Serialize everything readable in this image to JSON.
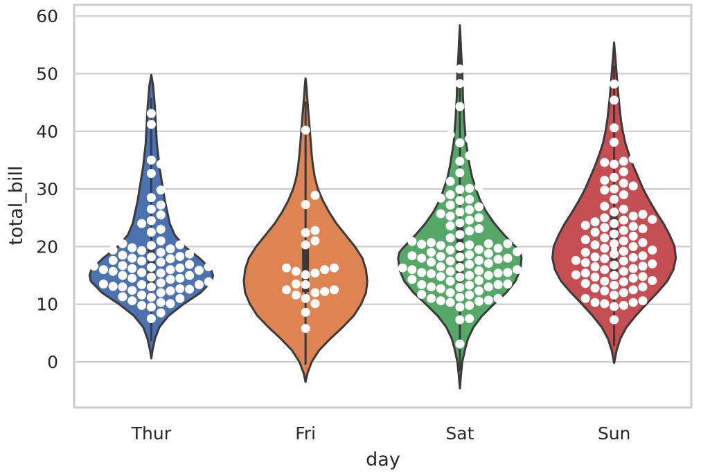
{
  "chart_data": {
    "type": "violin",
    "xlabel": "day",
    "ylabel": "total_bill",
    "ylim": [
      -8,
      62
    ],
    "yticks": [
      0,
      10,
      20,
      30,
      40,
      50,
      60
    ],
    "ytick_labels": [
      "0",
      "10",
      "20",
      "30",
      "40",
      "50",
      "60"
    ],
    "grid": true,
    "categories": [
      "Thur",
      "Fri",
      "Sat",
      "Sun"
    ],
    "colors": [
      "#4c72b0",
      "#dd8452",
      "#55a868",
      "#c44e52"
    ],
    "point_color": "#ffffff",
    "outline_color": "#3a3a3a",
    "violins": [
      {
        "name": "Thur",
        "range": [
          0.6,
          49.8
        ],
        "median": 16.2,
        "q1": 12.4,
        "q3": 20.2,
        "profile": [
          [
            0.6,
            0
          ],
          [
            2,
            0.02
          ],
          [
            4,
            0.06
          ],
          [
            6,
            0.13
          ],
          [
            8,
            0.28
          ],
          [
            10,
            0.52
          ],
          [
            12,
            0.8
          ],
          [
            14,
            0.98
          ],
          [
            15,
            1.0
          ],
          [
            16,
            0.97
          ],
          [
            18,
            0.78
          ],
          [
            20,
            0.54
          ],
          [
            22,
            0.38
          ],
          [
            24,
            0.3
          ],
          [
            26,
            0.26
          ],
          [
            28,
            0.22
          ],
          [
            30,
            0.19
          ],
          [
            32,
            0.16
          ],
          [
            34,
            0.13
          ],
          [
            36,
            0.11
          ],
          [
            38,
            0.09
          ],
          [
            40,
            0.08
          ],
          [
            42,
            0.07
          ],
          [
            44,
            0.06
          ],
          [
            46,
            0.045
          ],
          [
            48,
            0.03
          ],
          [
            49.8,
            0
          ]
        ],
        "points": [
          7.5,
          8.5,
          9.5,
          9.8,
          10.1,
          10.3,
          10.6,
          11.0,
          11.2,
          11.3,
          11.6,
          12.0,
          12.3,
          12.4,
          12.6,
          12.7,
          13.0,
          13.0,
          13.1,
          13.4,
          13.4,
          13.5,
          13.7,
          13.9,
          14.3,
          14.5,
          14.5,
          14.7,
          15.0,
          15.0,
          15.4,
          15.5,
          15.7,
          15.9,
          16.0,
          16.0,
          16.2,
          16.3,
          16.4,
          16.5,
          16.6,
          16.7,
          16.9,
          17.0,
          17.3,
          17.5,
          17.6,
          17.9,
          18.0,
          18.2,
          18.3,
          18.5,
          18.7,
          19.0,
          19.3,
          19.4,
          19.6,
          19.8,
          20.2,
          20.3,
          20.5,
          21.0,
          22.5,
          23.0,
          24.0,
          24.5,
          25.5,
          26.5,
          27.2,
          28.5,
          29.8,
          32.7,
          34.3,
          35.0,
          41.2,
          43.1
        ]
      },
      {
        "name": "Fri",
        "range": [
          -3.5,
          49.2
        ],
        "median": 15.4,
        "q1": 12.1,
        "q3": 21.0,
        "profile": [
          [
            -3.5,
            0
          ],
          [
            -2,
            0.03
          ],
          [
            0,
            0.1
          ],
          [
            2,
            0.22
          ],
          [
            4,
            0.4
          ],
          [
            6,
            0.6
          ],
          [
            8,
            0.78
          ],
          [
            10,
            0.9
          ],
          [
            12,
            0.98
          ],
          [
            14,
            1.0
          ],
          [
            16,
            0.98
          ],
          [
            18,
            0.92
          ],
          [
            20,
            0.8
          ],
          [
            22,
            0.65
          ],
          [
            24,
            0.5
          ],
          [
            26,
            0.38
          ],
          [
            28,
            0.28
          ],
          [
            30,
            0.2
          ],
          [
            32,
            0.15
          ],
          [
            34,
            0.12
          ],
          [
            36,
            0.1
          ],
          [
            38,
            0.085
          ],
          [
            40,
            0.07
          ],
          [
            42,
            0.055
          ],
          [
            44,
            0.04
          ],
          [
            46,
            0.025
          ],
          [
            48,
            0.012
          ],
          [
            49.2,
            0
          ]
        ],
        "points": [
          5.8,
          8.6,
          10.1,
          11.0,
          11.6,
          12.0,
          12.2,
          12.5,
          12.5,
          13.4,
          13.5,
          15.1,
          15.4,
          15.7,
          16.0,
          16.3,
          16.3,
          20.3,
          21.0,
          22.4,
          22.8,
          27.3,
          28.9,
          40.2
        ]
      },
      {
        "name": "Sat",
        "range": [
          -4.6,
          58.4
        ],
        "median": 18.2,
        "q1": 13.9,
        "q3": 24.7,
        "profile": [
          [
            -4.6,
            0
          ],
          [
            -2,
            0.02
          ],
          [
            0,
            0.04
          ],
          [
            2,
            0.08
          ],
          [
            4,
            0.13
          ],
          [
            6,
            0.22
          ],
          [
            8,
            0.36
          ],
          [
            10,
            0.55
          ],
          [
            12,
            0.75
          ],
          [
            14,
            0.9
          ],
          [
            16,
            0.98
          ],
          [
            18,
            1.0
          ],
          [
            19,
            0.98
          ],
          [
            20,
            0.9
          ],
          [
            22,
            0.72
          ],
          [
            24,
            0.56
          ],
          [
            26,
            0.43
          ],
          [
            28,
            0.33
          ],
          [
            30,
            0.26
          ],
          [
            32,
            0.2
          ],
          [
            34,
            0.16
          ],
          [
            36,
            0.13
          ],
          [
            38,
            0.1
          ],
          [
            40,
            0.085
          ],
          [
            42,
            0.07
          ],
          [
            44,
            0.06
          ],
          [
            46,
            0.05
          ],
          [
            48,
            0.045
          ],
          [
            50,
            0.04
          ],
          [
            52,
            0.03
          ],
          [
            54,
            0.02
          ],
          [
            56,
            0.012
          ],
          [
            58.4,
            0
          ]
        ],
        "points": [
          3.1,
          7.3,
          7.5,
          9.5,
          9.8,
          10.3,
          10.5,
          10.6,
          10.7,
          11.0,
          11.0,
          11.2,
          11.6,
          11.7,
          12.0,
          12.3,
          12.7,
          12.9,
          13.0,
          13.0,
          13.3,
          13.4,
          13.4,
          13.5,
          14.0,
          14.1,
          14.3,
          14.7,
          14.8,
          15.0,
          15.0,
          15.3,
          15.4,
          15.5,
          15.5,
          15.7,
          15.8,
          16.0,
          16.0,
          16.3,
          16.4,
          16.5,
          16.9,
          17.1,
          17.3,
          17.5,
          17.6,
          17.8,
          18.0,
          18.0,
          18.2,
          18.3,
          18.4,
          18.6,
          18.8,
          19.0,
          19.1,
          19.4,
          19.5,
          19.7,
          20.0,
          20.2,
          20.3,
          20.4,
          20.5,
          20.5,
          20.7,
          20.9,
          21.0,
          21.5,
          22.1,
          22.7,
          23.1,
          23.6,
          24.1,
          24.6,
          25.0,
          25.3,
          25.7,
          26.0,
          26.4,
          26.9,
          27.2,
          28.0,
          28.2,
          28.4,
          29.0,
          29.9,
          30.1,
          30.4,
          31.3,
          32.8,
          34.8,
          35.8,
          38.0,
          38.7,
          39.4,
          44.3,
          48.3,
          50.8
        ]
      },
      {
        "name": "Sun",
        "range": [
          -0.2,
          55.4
        ],
        "median": 19.6,
        "q1": 14.9,
        "q3": 25.7,
        "profile": [
          [
            -0.2,
            0
          ],
          [
            2,
            0.04
          ],
          [
            4,
            0.1
          ],
          [
            6,
            0.2
          ],
          [
            8,
            0.35
          ],
          [
            10,
            0.52
          ],
          [
            12,
            0.7
          ],
          [
            14,
            0.86
          ],
          [
            16,
            0.96
          ],
          [
            18,
            1.0
          ],
          [
            20,
            0.98
          ],
          [
            22,
            0.9
          ],
          [
            24,
            0.8
          ],
          [
            26,
            0.68
          ],
          [
            28,
            0.57
          ],
          [
            30,
            0.47
          ],
          [
            32,
            0.39
          ],
          [
            34,
            0.31
          ],
          [
            36,
            0.24
          ],
          [
            38,
            0.18
          ],
          [
            40,
            0.14
          ],
          [
            42,
            0.11
          ],
          [
            44,
            0.09
          ],
          [
            46,
            0.07
          ],
          [
            48,
            0.055
          ],
          [
            50,
            0.04
          ],
          [
            52,
            0.025
          ],
          [
            54,
            0.01
          ],
          [
            55.4,
            0
          ]
        ],
        "points": [
          7.3,
          9.6,
          9.8,
          10.1,
          10.3,
          10.3,
          10.6,
          11.0,
          11.6,
          12.0,
          12.3,
          12.5,
          12.8,
          13.0,
          13.3,
          13.6,
          13.9,
          14.0,
          14.1,
          14.5,
          14.7,
          14.8,
          15.0,
          15.1,
          15.4,
          15.7,
          16.0,
          16.2,
          16.5,
          16.6,
          16.8,
          17.0,
          17.2,
          17.5,
          17.6,
          17.9,
          18.1,
          18.2,
          18.4,
          18.7,
          19.0,
          19.2,
          19.4,
          19.7,
          20.0,
          20.3,
          20.5,
          20.7,
          21.0,
          21.2,
          21.5,
          21.8,
          22.2,
          22.5,
          22.8,
          23.1,
          23.3,
          23.5,
          23.7,
          24.0,
          24.3,
          24.6,
          24.7,
          25.0,
          25.3,
          25.6,
          26.0,
          26.5,
          27.0,
          28.2,
          29.0,
          29.8,
          30.0,
          30.5,
          31.0,
          31.5,
          32.0,
          33.0,
          34.3,
          34.6,
          34.8,
          35.2,
          38.1,
          40.6,
          45.4,
          48.2
        ]
      }
    ]
  }
}
